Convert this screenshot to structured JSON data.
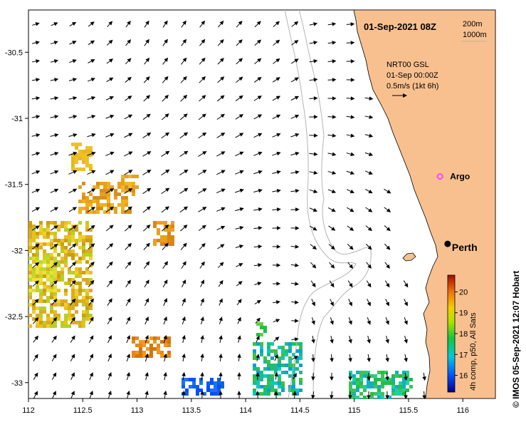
{
  "map": {
    "title": "01-Sep-2021 08Z",
    "depth_contours": [
      "200m",
      "1000m"
    ],
    "product": "NRT00 GSL",
    "product_time": "01-Sep 00:00Z",
    "vector_scale": "0.5m/s (1kt 6h)",
    "colorbar_label": "4h comp, p50, All Sats",
    "colorbar_ticks": [
      "20",
      "19",
      "18",
      "17",
      "16"
    ],
    "colorbar_range": [
      15.2,
      20.8
    ],
    "places": [
      {
        "name": "Argo",
        "lon": 115.79,
        "lat": -31.44,
        "marker": "argo-float"
      },
      {
        "name": "Perth",
        "lon": 115.86,
        "lat": -31.95,
        "marker": "city"
      }
    ],
    "axes": {
      "lon_ticks": [
        "112",
        "112.5",
        "113",
        "113.5",
        "114",
        "114.5",
        "115",
        "115.5",
        "116"
      ],
      "lat_ticks": [
        "-30.5",
        "-31",
        "-31.5",
        "-32",
        "-32.5",
        "-33"
      ],
      "lon_range": [
        112,
        116.3
      ],
      "lat_range": [
        -33.12,
        -30.18
      ]
    },
    "credit": "© IMOS 05-Sep-2021 12:07 Hobart",
    "colors": {
      "land": "#f9c08f",
      "contour": "#b4b4b4",
      "argo": "#ff44ff",
      "city": "#000000"
    }
  }
}
